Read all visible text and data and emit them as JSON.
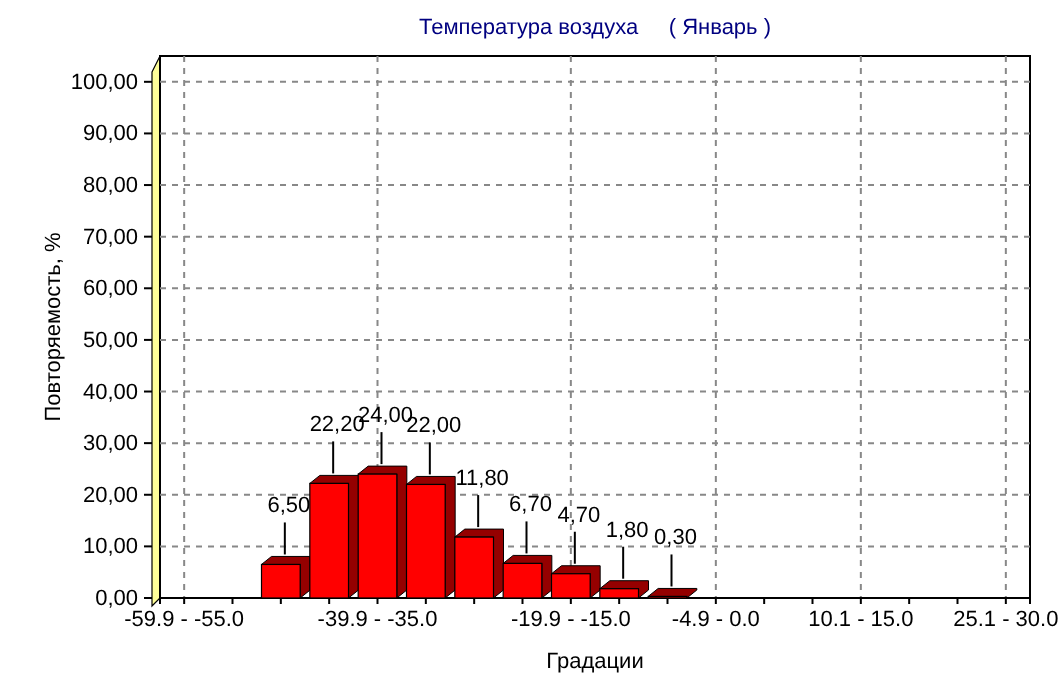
{
  "chart_data": {
    "type": "bar",
    "title": "Температура воздуха     ( Январь )",
    "xlabel": "Градации",
    "ylabel": "Повторяемость, %",
    "categories": [
      "-59.9 - -55.0",
      null,
      null,
      null,
      "-39.9 - -35.0",
      null,
      null,
      null,
      "-19.9 - -15.0",
      null,
      null,
      "-4.9 - 0.0",
      null,
      null,
      "10.1 - 15.0",
      null,
      null,
      "25.1 - 30.0"
    ],
    "values": [
      0,
      0,
      6.5,
      22.2,
      24,
      22,
      11.8,
      6.7,
      4.7,
      1.8,
      0.3,
      0,
      0,
      0,
      0,
      0,
      0,
      0
    ],
    "value_labels": [
      null,
      null,
      "6,50",
      "22,20",
      "24,00",
      "22,00",
      "11,80",
      "6,70",
      "4,70",
      "1,80",
      "0,30",
      null,
      null,
      null,
      null,
      null,
      null,
      null
    ],
    "color": "#ff0000",
    "ylim": [
      0,
      105
    ],
    "yticks": [
      {
        "value": 0,
        "label": "0,00"
      },
      {
        "value": 10,
        "label": "10,00"
      },
      {
        "value": 20,
        "label": "20,00"
      },
      {
        "value": 30,
        "label": "30,00"
      },
      {
        "value": 40,
        "label": "40,00"
      },
      {
        "value": 50,
        "label": "50,00"
      },
      {
        "value": 60,
        "label": "60,00"
      },
      {
        "value": 70,
        "label": "70,00"
      },
      {
        "value": 80,
        "label": "80,00"
      },
      {
        "value": 90,
        "label": "90,00"
      },
      {
        "value": 100,
        "label": "100,00"
      }
    ],
    "grid": true
  }
}
